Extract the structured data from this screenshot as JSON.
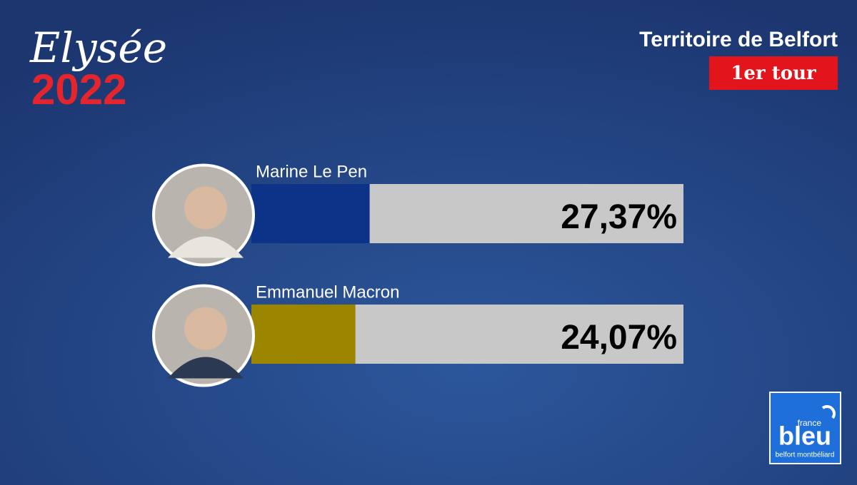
{
  "chart_data": {
    "type": "bar",
    "orientation": "horizontal",
    "title": "Territoire de Belfort",
    "subtitle": "1er tour",
    "categories": [
      "Marine Le Pen",
      "Emmanuel Macron"
    ],
    "values": [
      27.37,
      24.07
    ],
    "value_labels": [
      "27,37%",
      "24,07%"
    ],
    "colors": [
      "#0d3389",
      "#9c8600"
    ],
    "track_color": "#c8c8c8",
    "xlim": [
      0,
      100
    ]
  },
  "branding": {
    "event": "Elysée",
    "year": "2022",
    "brand_top": "france",
    "brand_main": "bleu",
    "brand_local": "belfort montbéliard"
  }
}
